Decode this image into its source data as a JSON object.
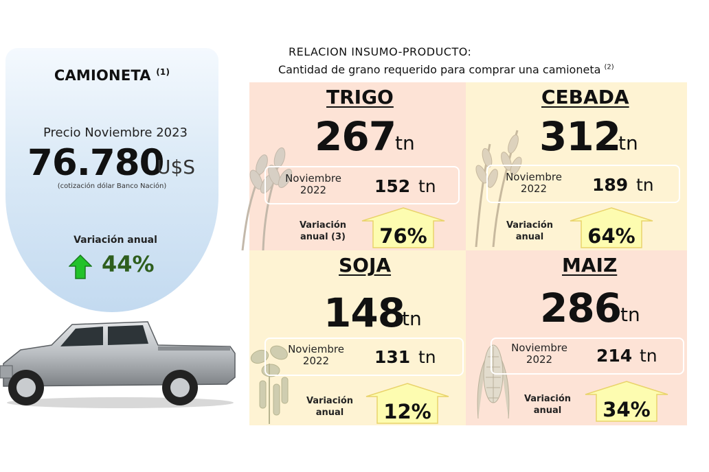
{
  "camioneta": {
    "title": "CAMIONETA",
    "footnote": "(1)",
    "price_label": "Precio Noviembre 2023",
    "price": "76.780",
    "currency": "U$S",
    "note": "(cotización dólar Banco Nación)",
    "variation_label": "Variación anual",
    "variation_value": "44%"
  },
  "relacion": {
    "title": "RELACION INSUMO-PRODUCTO:",
    "subtitle": "Cantidad de grano requerido para comprar una camioneta",
    "footnote": "(2)"
  },
  "crops": {
    "trigo": {
      "name": "TRIGO",
      "value": "267",
      "unit": "tn",
      "nov_label_1": "Noviembre",
      "nov_label_2": "2022",
      "nov_value": "152",
      "nov_unit": "tn",
      "var_label_1": "Variación",
      "var_label_2": "anual (3)",
      "var_value": "76%"
    },
    "cebada": {
      "name": "CEBADA",
      "value": "312",
      "unit": "tn",
      "nov_label_1": "Noviembre",
      "nov_label_2": "2022",
      "nov_value": "189",
      "nov_unit": "tn",
      "var_label_1": "Variación",
      "var_label_2": "anual",
      "var_value": "64%"
    },
    "soja": {
      "name": "SOJA",
      "value": "148",
      "unit": "tn",
      "nov_label_1": "Noviembre",
      "nov_label_2": "2022",
      "nov_value": "131",
      "nov_unit": "tn",
      "var_label_1": "Variación",
      "var_label_2": "anual",
      "var_value": "12%"
    },
    "maiz": {
      "name": "MAIZ",
      "value": "286",
      "unit": "tn",
      "nov_label_1": "Noviembre",
      "nov_label_2": "2022",
      "nov_value": "214",
      "nov_unit": "tn",
      "var_label_1": "Variación",
      "var_label_2": "anual",
      "var_value": "34%"
    }
  },
  "colors": {
    "panel_salmon": "#fde3d6",
    "panel_cream": "#fef3d3",
    "arrow_fill": "#fdfcb0",
    "green_arrow": "#22c22a",
    "green_text": "#2e5e1e"
  },
  "icons": [
    "wheat-icon",
    "barley-icon",
    "soy-icon",
    "corn-icon",
    "pickup-truck-icon",
    "up-arrow-icon"
  ]
}
